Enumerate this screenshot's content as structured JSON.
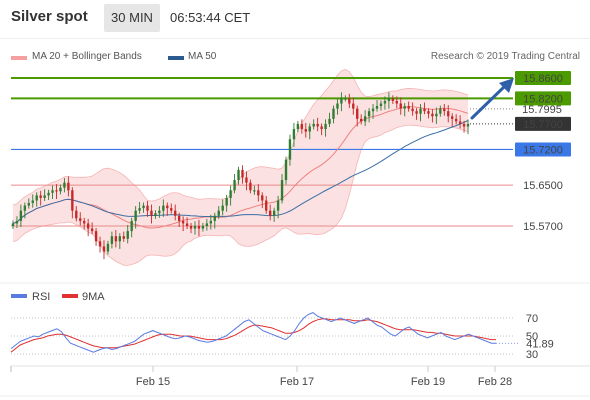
{
  "header": {
    "title": "Silver spot",
    "timeframe": "30 MIN",
    "timestamp": "06:53:44 CET"
  },
  "legend": {
    "items": [
      {
        "label": "MA 20 + Bollinger Bands",
        "color": "#f08080"
      },
      {
        "label": "MA 50",
        "color": "#2d5a8e"
      }
    ],
    "credit": "Research © 2019 Trading Central"
  },
  "colors": {
    "up_candle": "#2e7d32",
    "down_candle": "#c62828",
    "bollinger_fill": "#fadcdc",
    "ma20": "#f08080",
    "ma50": "#3a6ea5",
    "resistance": "#4a9a00",
    "pivot": "#3b78e7",
    "support": "#ea8a8a",
    "last": "#333333",
    "arrow": "#2e5fa8",
    "rsi": "#5b7be0",
    "rsi_ma": "#e03030"
  },
  "chart_data": [
    {
      "type": "candlestick",
      "title": "Silver spot",
      "x_labels": [
        "Feb 15",
        "Feb 17",
        "Feb 19",
        "Feb 28"
      ],
      "price_levels": [
        {
          "value": "15.8600",
          "kind": "resistance"
        },
        {
          "value": "15.8200",
          "kind": "resistance"
        },
        {
          "value": "15.7995",
          "kind": "current"
        },
        {
          "value": "15.7700",
          "kind": "last"
        },
        {
          "value": "15.7200",
          "kind": "pivot"
        },
        {
          "value": "15.6500",
          "kind": "support"
        },
        {
          "value": "15.5700",
          "kind": "support"
        }
      ],
      "approx_close": [
        15.575,
        15.58,
        15.6,
        15.61,
        15.615,
        15.62,
        15.63,
        15.625,
        15.63,
        15.635,
        15.64,
        15.638,
        15.645,
        15.655,
        15.64,
        15.6,
        15.585,
        15.58,
        15.575,
        15.565,
        15.56,
        15.54,
        15.53,
        15.52,
        15.535,
        15.55,
        15.54,
        15.55,
        15.545,
        15.56,
        15.58,
        15.6,
        15.605,
        15.61,
        15.6,
        15.59,
        15.595,
        15.6,
        15.61,
        15.605,
        15.6,
        15.59,
        15.58,
        15.575,
        15.57,
        15.565,
        15.57,
        15.565,
        15.57,
        15.575,
        15.58,
        15.59,
        15.6,
        15.61,
        15.625,
        15.64,
        15.66,
        15.68,
        15.665,
        15.655,
        15.64,
        15.64,
        15.63,
        15.62,
        15.6,
        15.59,
        15.6,
        15.62,
        15.66,
        15.7,
        15.74,
        15.76,
        15.77,
        15.76,
        15.755,
        15.765,
        15.77,
        15.765,
        15.76,
        15.77,
        15.78,
        15.8,
        15.81,
        15.82,
        15.82,
        15.81,
        15.8,
        15.78,
        15.775,
        15.785,
        15.795,
        15.8,
        15.805,
        15.81,
        15.815,
        15.82,
        15.815,
        15.81,
        15.8,
        15.805,
        15.8,
        15.795,
        15.79,
        15.8,
        15.795,
        15.79,
        15.785,
        15.79,
        15.8,
        15.795,
        15.785,
        15.78,
        15.775,
        15.77,
        15.765,
        15.77
      ],
      "indicators": [
        "MA 20 + Bollinger Bands",
        "MA 50"
      ]
    },
    {
      "type": "line",
      "title": "RSI",
      "series": [
        {
          "name": "RSI",
          "color": "#5b7be0"
        },
        {
          "name": "9MA",
          "color": "#e03030"
        }
      ],
      "y_ticks": [
        "70",
        "50",
        "30"
      ],
      "last_value": "41.89",
      "rsi_values": [
        36,
        40,
        44,
        46,
        48,
        50,
        49,
        52,
        54,
        56,
        58,
        55,
        48,
        42,
        40,
        38,
        36,
        34,
        32,
        34,
        36,
        37,
        35,
        36,
        38,
        40,
        42,
        44,
        48,
        52,
        54,
        56,
        54,
        52,
        50,
        48,
        47,
        48,
        50,
        49,
        47,
        45,
        44,
        43,
        44,
        46,
        48,
        50,
        54,
        58,
        62,
        66,
        68,
        64,
        60,
        56,
        54,
        52,
        50,
        48,
        46,
        50,
        56,
        64,
        70,
        74,
        76,
        72,
        70,
        68,
        66,
        68,
        70,
        68,
        66,
        64,
        66,
        68,
        70,
        66,
        62,
        60,
        56,
        52,
        50,
        54,
        58,
        60,
        56,
        52,
        50,
        48,
        50,
        52,
        54,
        50,
        48,
        46,
        48,
        50,
        52,
        50,
        48,
        46,
        44,
        42,
        42
      ],
      "ma_values": [
        32,
        36,
        40,
        42,
        44,
        46,
        47,
        48,
        50,
        51,
        52,
        52,
        51,
        49,
        47,
        45,
        43,
        41,
        39,
        38,
        37,
        37,
        37,
        37,
        38,
        39,
        40,
        41,
        43,
        45,
        47,
        49,
        51,
        52,
        52,
        52,
        51,
        50,
        50,
        50,
        49,
        48,
        47,
        46,
        46,
        46,
        46,
        47,
        49,
        51,
        54,
        57,
        60,
        62,
        62,
        61,
        60,
        59,
        57,
        55,
        53,
        53,
        54,
        56,
        59,
        63,
        66,
        68,
        69,
        69,
        68,
        68,
        68,
        68,
        68,
        67,
        67,
        67,
        68,
        67,
        66,
        64,
        62,
        60,
        58,
        57,
        57,
        57,
        57,
        56,
        55,
        54,
        54,
        53,
        53,
        52,
        51,
        50,
        50,
        50,
        50,
        50,
        49,
        48,
        47,
        46,
        46
      ]
    }
  ]
}
